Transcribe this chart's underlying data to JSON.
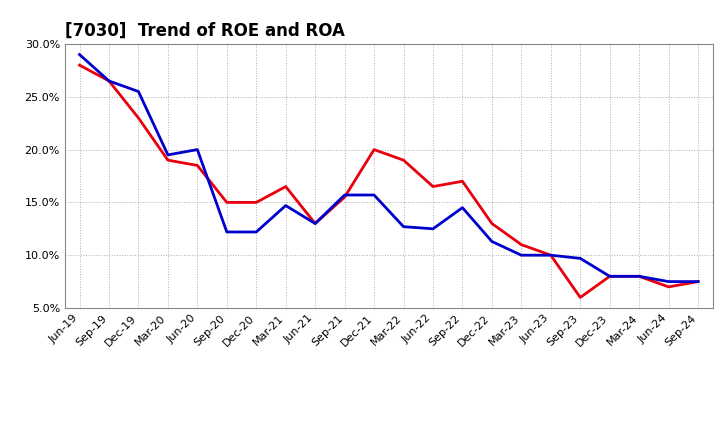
{
  "title": "[7030]  Trend of ROE and ROA",
  "labels": [
    "Jun-19",
    "Sep-19",
    "Dec-19",
    "Mar-20",
    "Jun-20",
    "Sep-20",
    "Dec-20",
    "Mar-21",
    "Jun-21",
    "Sep-21",
    "Dec-21",
    "Mar-22",
    "Jun-22",
    "Sep-22",
    "Dec-22",
    "Mar-23",
    "Jun-23",
    "Sep-23",
    "Dec-23",
    "Mar-24",
    "Jun-24",
    "Sep-24"
  ],
  "ROE": [
    28.0,
    26.5,
    23.0,
    19.0,
    18.5,
    15.0,
    15.0,
    16.5,
    13.0,
    15.5,
    20.0,
    19.0,
    16.5,
    17.0,
    13.0,
    11.0,
    10.0,
    6.0,
    8.0,
    8.0,
    7.0,
    7.5
  ],
  "ROA": [
    29.0,
    26.5,
    25.5,
    19.5,
    20.0,
    12.2,
    12.2,
    14.7,
    13.0,
    15.7,
    15.7,
    12.7,
    12.5,
    14.5,
    11.3,
    10.0,
    10.0,
    9.7,
    8.0,
    8.0,
    7.5,
    7.5
  ],
  "roe_color": "#e8000d",
  "roa_color": "#0000cc",
  "ylim_min": 5.0,
  "ylim_max": 30.0,
  "yticks": [
    5.0,
    10.0,
    15.0,
    20.0,
    25.0,
    30.0
  ],
  "background_color": "#ffffff",
  "grid_color": "#999999",
  "line_width": 2.0,
  "title_fontsize": 12,
  "tick_fontsize": 8
}
